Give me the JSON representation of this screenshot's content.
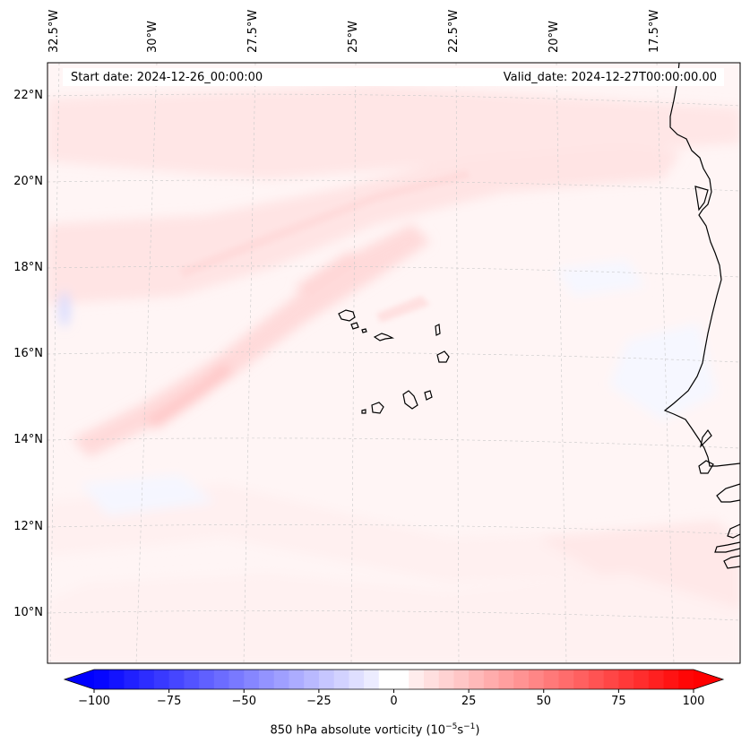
{
  "map": {
    "start_date": "Start date: 2024-12-26_00:00:00",
    "valid_date": "Valid_date: 2024-12-27T00:00:00.00",
    "lon_labels": [
      "32.5°W",
      "30°W",
      "27.5°W",
      "25°W",
      "22.5°W",
      "20°W",
      "17.5°W"
    ],
    "lat_labels": [
      "22°N",
      "20°N",
      "18°N",
      "16°N",
      "14°N",
      "12°N",
      "10°N"
    ],
    "field": "850 hPa absolute vorticity"
  },
  "colorbar": {
    "title": "850 hPa absolute vorticity (10",
    "title_exp1": "−5",
    "title_mid": "s",
    "title_exp2": "−1",
    "title_end": ")",
    "tick_labels": [
      "−100",
      "−75",
      "−50",
      "−25",
      "0",
      "25",
      "50",
      "75",
      "100"
    ],
    "range": [
      -100,
      100
    ],
    "colors": {
      "min": "#0000ff",
      "mid": "#ffffff",
      "max": "#ff0000"
    }
  }
}
